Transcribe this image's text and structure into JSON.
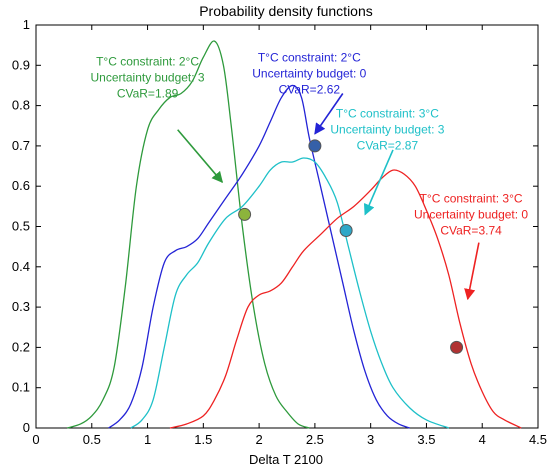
{
  "chart_data": {
    "type": "line",
    "title": "Probability density functions",
    "xlabel": "Delta T 2100",
    "ylabel": "",
    "xlim": [
      0,
      4.5
    ],
    "ylim": [
      0,
      1
    ],
    "xticks": [
      "0",
      "0.5",
      "1",
      "1.5",
      "2",
      "2.5",
      "3",
      "3.5",
      "4",
      "4.5"
    ],
    "yticks": [
      "0",
      "0.1",
      "0.2",
      "0.3",
      "0.4",
      "0.5",
      "0.6",
      "0.7",
      "0.8",
      "0.9",
      "1"
    ],
    "grid": false,
    "series": [
      {
        "color": "#2e9a3c",
        "points": [
          [
            0.28,
            0
          ],
          [
            0.4,
            0.01
          ],
          [
            0.5,
            0.03
          ],
          [
            0.6,
            0.07
          ],
          [
            0.7,
            0.15
          ],
          [
            0.8,
            0.35
          ],
          [
            0.9,
            0.6
          ],
          [
            1.0,
            0.74
          ],
          [
            1.1,
            0.79
          ],
          [
            1.2,
            0.82
          ],
          [
            1.3,
            0.83
          ],
          [
            1.4,
            0.86
          ],
          [
            1.5,
            0.92
          ],
          [
            1.6,
            0.96
          ],
          [
            1.68,
            0.9
          ],
          [
            1.75,
            0.75
          ],
          [
            1.85,
            0.5
          ],
          [
            1.95,
            0.3
          ],
          [
            2.05,
            0.16
          ],
          [
            2.15,
            0.08
          ],
          [
            2.25,
            0.04
          ],
          [
            2.35,
            0.01
          ],
          [
            2.45,
            0
          ]
        ]
      },
      {
        "color": "#2424d6",
        "points": [
          [
            0.65,
            0
          ],
          [
            0.75,
            0.02
          ],
          [
            0.85,
            0.06
          ],
          [
            0.95,
            0.15
          ],
          [
            1.05,
            0.3
          ],
          [
            1.15,
            0.41
          ],
          [
            1.25,
            0.44
          ],
          [
            1.35,
            0.45
          ],
          [
            1.45,
            0.47
          ],
          [
            1.55,
            0.51
          ],
          [
            1.7,
            0.57
          ],
          [
            1.85,
            0.63
          ],
          [
            2.0,
            0.7
          ],
          [
            2.1,
            0.76
          ],
          [
            2.2,
            0.82
          ],
          [
            2.3,
            0.85
          ],
          [
            2.38,
            0.82
          ],
          [
            2.45,
            0.72
          ],
          [
            2.55,
            0.6
          ],
          [
            2.65,
            0.48
          ],
          [
            2.75,
            0.36
          ],
          [
            2.85,
            0.24
          ],
          [
            2.95,
            0.14
          ],
          [
            3.05,
            0.07
          ],
          [
            3.15,
            0.03
          ],
          [
            3.25,
            0.01
          ],
          [
            3.35,
            0
          ]
        ]
      },
      {
        "color": "#1ec0c8",
        "points": [
          [
            0.85,
            0
          ],
          [
            0.95,
            0.02
          ],
          [
            1.05,
            0.07
          ],
          [
            1.15,
            0.2
          ],
          [
            1.25,
            0.33
          ],
          [
            1.35,
            0.38
          ],
          [
            1.45,
            0.41
          ],
          [
            1.55,
            0.46
          ],
          [
            1.7,
            0.52
          ],
          [
            1.85,
            0.55
          ],
          [
            2.0,
            0.6
          ],
          [
            2.1,
            0.64
          ],
          [
            2.2,
            0.66
          ],
          [
            2.3,
            0.66
          ],
          [
            2.4,
            0.67
          ],
          [
            2.5,
            0.66
          ],
          [
            2.6,
            0.62
          ],
          [
            2.7,
            0.56
          ],
          [
            2.8,
            0.45
          ],
          [
            2.9,
            0.34
          ],
          [
            3.0,
            0.24
          ],
          [
            3.1,
            0.16
          ],
          [
            3.2,
            0.1
          ],
          [
            3.35,
            0.05
          ],
          [
            3.5,
            0.02
          ],
          [
            3.7,
            0
          ]
        ]
      },
      {
        "color": "#ee2222",
        "points": [
          [
            1.2,
            0
          ],
          [
            1.35,
            0.01
          ],
          [
            1.5,
            0.03
          ],
          [
            1.6,
            0.07
          ],
          [
            1.7,
            0.13
          ],
          [
            1.8,
            0.22
          ],
          [
            1.9,
            0.3
          ],
          [
            2.0,
            0.33
          ],
          [
            2.1,
            0.34
          ],
          [
            2.2,
            0.36
          ],
          [
            2.3,
            0.4
          ],
          [
            2.4,
            0.44
          ],
          [
            2.55,
            0.48
          ],
          [
            2.7,
            0.52
          ],
          [
            2.85,
            0.55
          ],
          [
            3.0,
            0.59
          ],
          [
            3.1,
            0.62
          ],
          [
            3.2,
            0.64
          ],
          [
            3.3,
            0.63
          ],
          [
            3.4,
            0.6
          ],
          [
            3.5,
            0.54
          ],
          [
            3.6,
            0.47
          ],
          [
            3.7,
            0.38
          ],
          [
            3.8,
            0.26
          ],
          [
            3.9,
            0.16
          ],
          [
            4.0,
            0.09
          ],
          [
            4.1,
            0.04
          ],
          [
            4.2,
            0.02
          ],
          [
            4.35,
            0
          ]
        ]
      }
    ],
    "markers": [
      {
        "x": 1.87,
        "y": 0.53,
        "color": "#8cb43c"
      },
      {
        "x": 2.5,
        "y": 0.7,
        "color": "#3560a8"
      },
      {
        "x": 2.78,
        "y": 0.49,
        "color": "#2ea8c8"
      },
      {
        "x": 3.77,
        "y": 0.2,
        "color": "#b03232"
      }
    ],
    "annotations": [
      {
        "lines": [
          "T°C constraint: 2°C",
          "Uncertainty budget: 3",
          "CVaR=1.89"
        ],
        "color": "#2e9a3c",
        "text_at": [
          1.0,
          0.9
        ],
        "arrow_from": [
          1.27,
          0.74
        ],
        "arrow_to": [
          1.67,
          0.61
        ]
      },
      {
        "lines": [
          "T°C constraint: 2°C",
          "Uncertainty budget: 0",
          "CVaR=2.62"
        ],
        "color": "#2424d6",
        "text_at": [
          2.45,
          0.91
        ],
        "arrow_from": [
          2.75,
          0.83
        ],
        "arrow_to": [
          2.5,
          0.73
        ]
      },
      {
        "lines": [
          "T°C constraint: 3°C",
          "Uncertainty budget: 3",
          "CVaR=2.87"
        ],
        "color": "#1ec0c8",
        "text_at": [
          3.15,
          0.77
        ],
        "arrow_from": [
          3.2,
          0.69
        ],
        "arrow_to": [
          2.95,
          0.53
        ]
      },
      {
        "lines": [
          "T°C constraint: 3°C",
          "Uncertainty budget: 0",
          "CVaR=3.74"
        ],
        "color": "#ee2222",
        "text_at": [
          3.9,
          0.56
        ],
        "arrow_from": [
          3.97,
          0.46
        ],
        "arrow_to": [
          3.87,
          0.32
        ]
      }
    ]
  }
}
